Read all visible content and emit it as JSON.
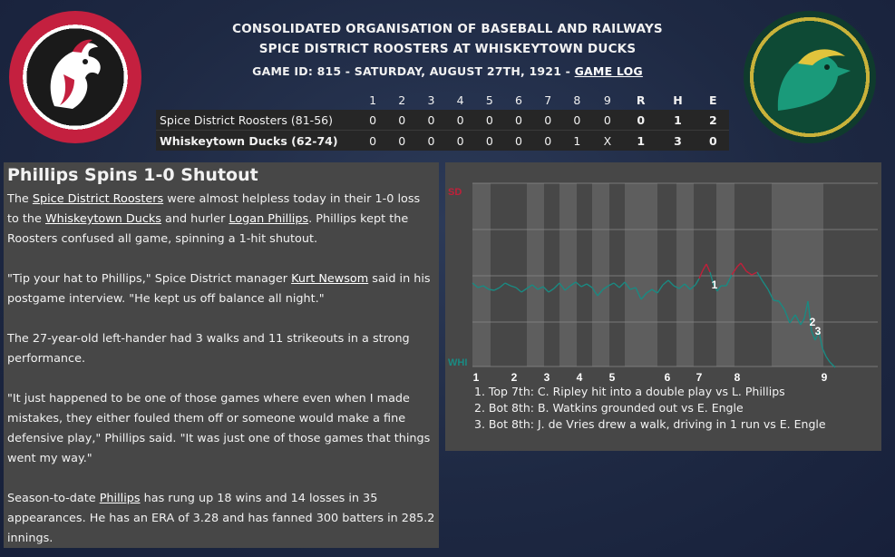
{
  "header": {
    "org": "CONSOLIDATED ORGANISATION OF BASEBALL AND RAILWAYS",
    "matchup": "SPICE DISTRICT ROOSTERS AT WHISKEYTOWN DUCKS",
    "game_info": "GAME ID: 815 - SATURDAY, AUGUST 27TH, 1921 - ",
    "game_log_link": "GAME LOG"
  },
  "logos": {
    "left": "roosters-logo",
    "right": "ducks-logo"
  },
  "linescore": {
    "headers": [
      "1",
      "2",
      "3",
      "4",
      "5",
      "6",
      "7",
      "8",
      "9",
      "R",
      "H",
      "E"
    ],
    "rows": [
      {
        "team": "Spice District Roosters (81-56)",
        "cells": [
          "0",
          "0",
          "0",
          "0",
          "0",
          "0",
          "0",
          "0",
          "0",
          "0",
          "1",
          "2"
        ]
      },
      {
        "team": "Whiskeytown Ducks (62-74)",
        "cells": [
          "0",
          "0",
          "0",
          "0",
          "0",
          "0",
          "0",
          "1",
          "X",
          "1",
          "3",
          "0"
        ]
      }
    ]
  },
  "story": {
    "headline": "Phillips Spins 1-0 Shutout",
    "p1_a": "The ",
    "p1_link1": "Spice District Roosters",
    "p1_b": " were almost helpless today in their 1-0 loss to the ",
    "p1_link2": "Whiskeytown Ducks",
    "p1_c": " and hurler ",
    "p1_link3": "Logan Phillips",
    "p1_d": ". Phillips kept the Roosters confused all game, spinning a 1-hit shutout.",
    "p2_a": "\"Tip your hat to Phillips,\" Spice District manager ",
    "p2_link": "Kurt Newsom",
    "p2_b": " said in his postgame interview. \"He kept us off balance all night.\"",
    "p3": "The 27-year-old left-hander had 3 walks and 11 strikeouts in a strong performance.",
    "p4": "\"It just happened to be one of those games where even when I made mistakes, they either fouled them off or someone would make a fine defensive play,\" Phillips said. \"It was just one of those games that things went my way.\"",
    "p5_a": "Season-to-date ",
    "p5_link": "Phillips",
    "p5_b": " has rung up 18 wins and 14 losses in 35 appearances. He has an ERA of 3.28 and has fanned 300 batters in 285.2 innings."
  },
  "win_probability": {
    "top_label": "SD",
    "bottom_label": "WHI",
    "top_color": "#c0203a",
    "bottom_color": "#1a8a82",
    "inning_labels": [
      "1",
      "2",
      "3",
      "4",
      "5",
      "6",
      "7",
      "8",
      "9"
    ],
    "markers": [
      "1",
      "2",
      "3"
    ],
    "notes": [
      "1. Top 7th: C. Ripley hit into a double play vs L. Phillips",
      "2. Bot 8th: B. Watkins grounded out vs E. Engle",
      "3. Bot 8th: J. de Vries drew a walk, driving in 1 run vs E. Engle"
    ]
  }
}
